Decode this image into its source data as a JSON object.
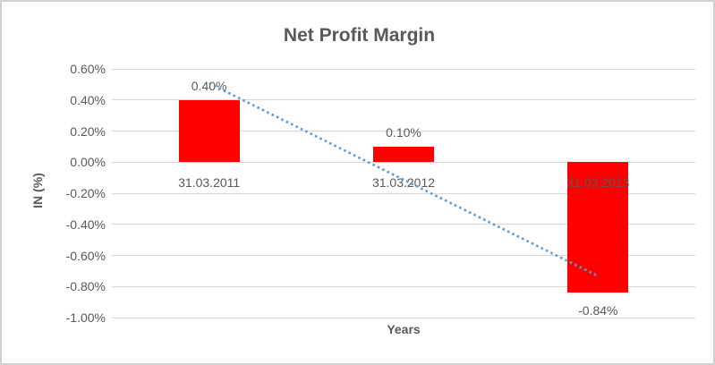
{
  "chart_data": {
    "type": "bar",
    "title": "Net Profit Margin",
    "xlabel": "Years",
    "ylabel": "IN (%)",
    "categories": [
      "31.03.2011",
      "31.03.2012",
      "31.03.2013"
    ],
    "values": [
      0.4,
      0.1,
      -0.84
    ],
    "value_labels": [
      "0.40%",
      "0.10%",
      "-0.84%"
    ],
    "value_unit": "percent",
    "y_ticks": [
      0.6,
      0.4,
      0.2,
      0.0,
      -0.2,
      -0.4,
      -0.6,
      -0.8,
      -1.0
    ],
    "y_tick_labels": [
      "0.60%",
      "0.40%",
      "0.20%",
      "0.00%",
      "-0.20%",
      "-0.40%",
      "-0.60%",
      "-0.80%",
      "-1.00%"
    ],
    "ylim": [
      -1.0,
      0.6
    ],
    "grid": true,
    "legend": false,
    "trendline": {
      "type": "linear",
      "style": "dotted",
      "start_value": 0.507,
      "end_value": -0.733
    },
    "colors": {
      "bar": "#ff0000",
      "trendline": "#5b9bd5",
      "text": "#595959",
      "gridline": "#d9d9d9",
      "border": "#d0d0d0"
    }
  }
}
